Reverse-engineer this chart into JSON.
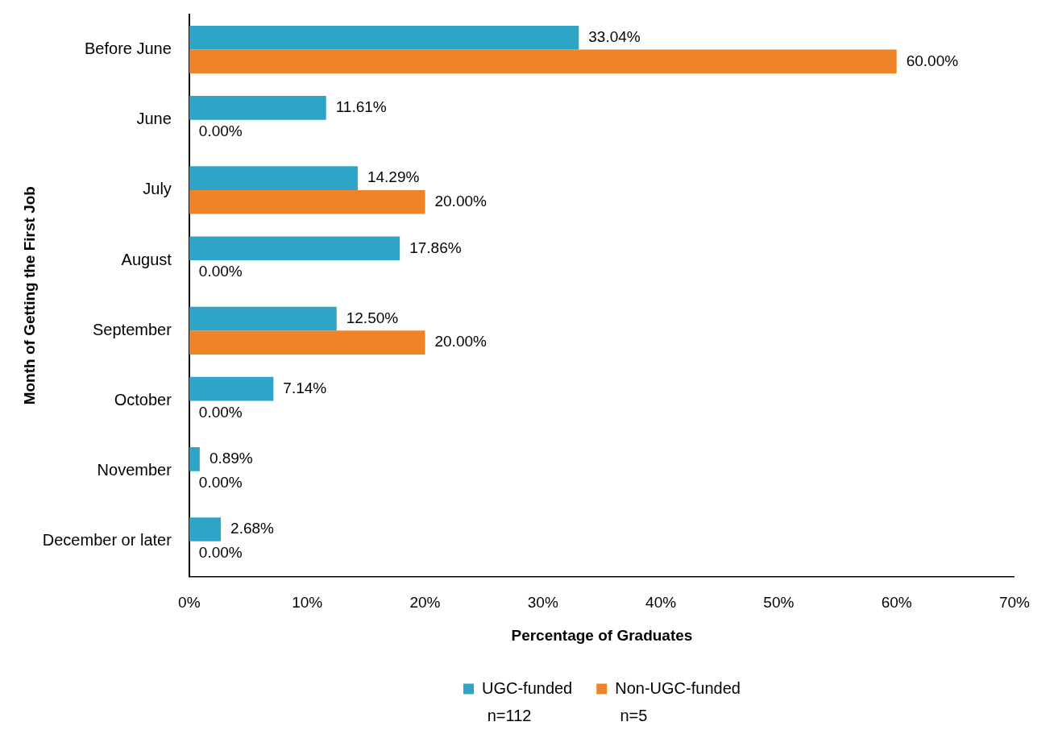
{
  "chart_data": {
    "type": "bar",
    "orientation": "horizontal",
    "xlabel": "Percentage of Graduates",
    "ylabel": "Month of Getting the First Job",
    "categories": [
      "Before June",
      "June",
      "July",
      "August",
      "September",
      "October",
      "November",
      "December or later"
    ],
    "series": [
      {
        "name": "UGC-funded",
        "color": "#2ea4c6",
        "values": [
          33.04,
          11.61,
          14.29,
          17.86,
          12.5,
          7.14,
          0.89,
          2.68
        ],
        "value_labels": [
          "33.04%",
          "11.61%",
          "14.29%",
          "17.86%",
          "12.50%",
          "7.14%",
          "0.89%",
          "2.68%"
        ]
      },
      {
        "name": "Non-UGC-funded",
        "color": "#ee8427",
        "values": [
          60,
          0,
          20,
          0,
          20,
          0,
          0,
          0
        ],
        "value_labels": [
          "60.00%",
          "0.00%",
          "20.00%",
          "0.00%",
          "20.00%",
          "0.00%",
          "0.00%",
          "0.00%"
        ]
      }
    ],
    "xlim": [
      0,
      70
    ],
    "xticks": [
      {
        "value": 0,
        "label": "0%"
      },
      {
        "value": 10,
        "label": "10%"
      },
      {
        "value": 20,
        "label": "20%"
      },
      {
        "value": 30,
        "label": "30%"
      },
      {
        "value": 40,
        "label": "40%"
      },
      {
        "value": 50,
        "label": "50%"
      },
      {
        "value": 60,
        "label": "60%"
      },
      {
        "value": 70,
        "label": "70%"
      }
    ],
    "grid": false,
    "legend": "bottom",
    "annotations": [
      "n=112",
      "n=5"
    ]
  }
}
